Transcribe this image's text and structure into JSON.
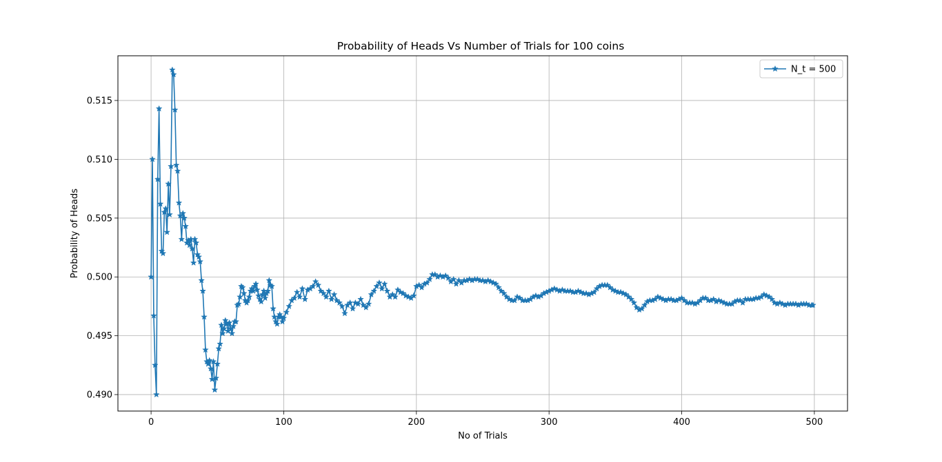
{
  "chart_data": {
    "type": "line",
    "title": "Probability of Heads Vs Number of Trials for 100 coins",
    "xlabel": "No of Trials",
    "ylabel": "Probability of Heads",
    "xlim": [
      -25,
      525
    ],
    "ylim": [
      0.4886,
      0.5188
    ],
    "xticks": [
      0,
      100,
      200,
      300,
      400,
      500
    ],
    "yticks": [
      0.49,
      0.495,
      0.5,
      0.505,
      0.51,
      0.515
    ],
    "ytick_labels": [
      "0.490",
      "0.495",
      "0.500",
      "0.505",
      "0.510",
      "0.515"
    ],
    "grid": true,
    "legend_position": "top-right",
    "marker": "star",
    "series": [
      {
        "name": "N_t = 500",
        "color": "#1f77b4",
        "points": [
          [
            0,
            0.5
          ],
          [
            1,
            0.51
          ],
          [
            2,
            0.4967
          ],
          [
            3,
            0.4925
          ],
          [
            4,
            0.49
          ],
          [
            5,
            0.5083
          ],
          [
            6,
            0.5143
          ],
          [
            7,
            0.5062
          ],
          [
            8,
            0.5022
          ],
          [
            9,
            0.502
          ],
          [
            10,
            0.5055
          ],
          [
            11,
            0.5058
          ],
          [
            12,
            0.5038
          ],
          [
            13,
            0.5079
          ],
          [
            14,
            0.5053
          ],
          [
            15,
            0.5094
          ],
          [
            16,
            0.5176
          ],
          [
            17,
            0.5172
          ],
          [
            18,
            0.5142
          ],
          [
            19,
            0.5095
          ],
          [
            20,
            0.509
          ],
          [
            21,
            0.5063
          ],
          [
            22,
            0.5052
          ],
          [
            23,
            0.5032
          ],
          [
            24,
            0.5054
          ],
          [
            25,
            0.505
          ],
          [
            26,
            0.5043
          ],
          [
            27,
            0.5029
          ],
          [
            28,
            0.5031
          ],
          [
            29,
            0.5027
          ],
          [
            30,
            0.5032
          ],
          [
            31,
            0.5024
          ],
          [
            32,
            0.5012
          ],
          [
            33,
            0.5032
          ],
          [
            34,
            0.5029
          ],
          [
            35,
            0.5019
          ],
          [
            36,
            0.5017
          ],
          [
            37,
            0.5013
          ],
          [
            38,
            0.4997
          ],
          [
            39,
            0.4988
          ],
          [
            40,
            0.4966
          ],
          [
            41,
            0.4938
          ],
          [
            42,
            0.4928
          ],
          [
            43,
            0.4926
          ],
          [
            44,
            0.4929
          ],
          [
            45,
            0.4922
          ],
          [
            46,
            0.4913
          ],
          [
            47,
            0.4928
          ],
          [
            48,
            0.4904
          ],
          [
            49,
            0.4914
          ],
          [
            50,
            0.4926
          ],
          [
            51,
            0.4939
          ],
          [
            52,
            0.4943
          ],
          [
            53,
            0.4959
          ],
          [
            54,
            0.4952
          ],
          [
            55,
            0.4956
          ],
          [
            56,
            0.4963
          ],
          [
            57,
            0.496
          ],
          [
            58,
            0.4954
          ],
          [
            59,
            0.4961
          ],
          [
            60,
            0.4956
          ],
          [
            61,
            0.4952
          ],
          [
            62,
            0.4958
          ],
          [
            63,
            0.4962
          ],
          [
            64,
            0.4962
          ],
          [
            65,
            0.4976
          ],
          [
            66,
            0.4977
          ],
          [
            67,
            0.4983
          ],
          [
            68,
            0.4992
          ],
          [
            69,
            0.4991
          ],
          [
            70,
            0.4986
          ],
          [
            71,
            0.498
          ],
          [
            72,
            0.4978
          ],
          [
            73,
            0.498
          ],
          [
            74,
            0.4983
          ],
          [
            75,
            0.4988
          ],
          [
            76,
            0.499
          ],
          [
            77,
            0.4988
          ],
          [
            78,
            0.4992
          ],
          [
            79,
            0.4994
          ],
          [
            80,
            0.4989
          ],
          [
            81,
            0.4984
          ],
          [
            82,
            0.4981
          ],
          [
            83,
            0.4979
          ],
          [
            84,
            0.4985
          ],
          [
            85,
            0.4988
          ],
          [
            86,
            0.4982
          ],
          [
            87,
            0.4986
          ],
          [
            88,
            0.4988
          ],
          [
            89,
            0.4997
          ],
          [
            90,
            0.4993
          ],
          [
            91,
            0.4992
          ],
          [
            92,
            0.4973
          ],
          [
            93,
            0.4966
          ],
          [
            94,
            0.4962
          ],
          [
            95,
            0.496
          ],
          [
            96,
            0.4966
          ],
          [
            97,
            0.4968
          ],
          [
            98,
            0.4966
          ],
          [
            99,
            0.4962
          ],
          [
            100,
            0.4965
          ],
          [
            102,
            0.497
          ],
          [
            104,
            0.4975
          ],
          [
            106,
            0.498
          ],
          [
            108,
            0.4982
          ],
          [
            110,
            0.4987
          ],
          [
            112,
            0.4983
          ],
          [
            114,
            0.499
          ],
          [
            116,
            0.4981
          ],
          [
            118,
            0.4989
          ],
          [
            120,
            0.499
          ],
          [
            122,
            0.4992
          ],
          [
            124,
            0.4996
          ],
          [
            126,
            0.4993
          ],
          [
            128,
            0.4988
          ],
          [
            130,
            0.4986
          ],
          [
            132,
            0.4983
          ],
          [
            134,
            0.4988
          ],
          [
            136,
            0.4981
          ],
          [
            138,
            0.4985
          ],
          [
            140,
            0.498
          ],
          [
            142,
            0.4978
          ],
          [
            144,
            0.4975
          ],
          [
            146,
            0.4969
          ],
          [
            148,
            0.4976
          ],
          [
            150,
            0.4978
          ],
          [
            152,
            0.4973
          ],
          [
            154,
            0.4978
          ],
          [
            156,
            0.4977
          ],
          [
            158,
            0.4981
          ],
          [
            160,
            0.4976
          ],
          [
            162,
            0.4974
          ],
          [
            164,
            0.4977
          ],
          [
            166,
            0.4985
          ],
          [
            168,
            0.4988
          ],
          [
            170,
            0.4992
          ],
          [
            172,
            0.4995
          ],
          [
            174,
            0.499
          ],
          [
            176,
            0.4994
          ],
          [
            178,
            0.4988
          ],
          [
            180,
            0.4983
          ],
          [
            182,
            0.4985
          ],
          [
            184,
            0.4983
          ],
          [
            186,
            0.4989
          ],
          [
            188,
            0.4987
          ],
          [
            190,
            0.4986
          ],
          [
            192,
            0.4984
          ],
          [
            194,
            0.4983
          ],
          [
            196,
            0.4982
          ],
          [
            198,
            0.4984
          ],
          [
            200,
            0.4992
          ],
          [
            202,
            0.4993
          ],
          [
            204,
            0.4991
          ],
          [
            206,
            0.4994
          ],
          [
            208,
            0.4995
          ],
          [
            210,
            0.4998
          ],
          [
            212,
            0.5002
          ],
          [
            214,
            0.5002
          ],
          [
            216,
            0.5
          ],
          [
            218,
            0.5001
          ],
          [
            220,
            0.5
          ],
          [
            222,
            0.5001
          ],
          [
            224,
            0.4999
          ],
          [
            226,
            0.4996
          ],
          [
            228,
            0.4998
          ],
          [
            230,
            0.4994
          ],
          [
            232,
            0.4997
          ],
          [
            234,
            0.4995
          ],
          [
            236,
            0.4997
          ],
          [
            238,
            0.4997
          ],
          [
            240,
            0.4998
          ],
          [
            242,
            0.4997
          ],
          [
            244,
            0.4998
          ],
          [
            246,
            0.4998
          ],
          [
            248,
            0.4997
          ],
          [
            250,
            0.4997
          ],
          [
            252,
            0.4996
          ],
          [
            254,
            0.4997
          ],
          [
            256,
            0.4996
          ],
          [
            258,
            0.4995
          ],
          [
            260,
            0.4994
          ],
          [
            262,
            0.4991
          ],
          [
            264,
            0.4988
          ],
          [
            266,
            0.4986
          ],
          [
            268,
            0.4983
          ],
          [
            270,
            0.4981
          ],
          [
            272,
            0.498
          ],
          [
            274,
            0.498
          ],
          [
            276,
            0.4983
          ],
          [
            278,
            0.4982
          ],
          [
            280,
            0.498
          ],
          [
            282,
            0.498
          ],
          [
            284,
            0.498
          ],
          [
            286,
            0.4981
          ],
          [
            288,
            0.4983
          ],
          [
            290,
            0.4984
          ],
          [
            292,
            0.4983
          ],
          [
            294,
            0.4984
          ],
          [
            296,
            0.4986
          ],
          [
            298,
            0.4987
          ],
          [
            300,
            0.4988
          ],
          [
            302,
            0.4989
          ],
          [
            304,
            0.499
          ],
          [
            306,
            0.4989
          ],
          [
            308,
            0.4988
          ],
          [
            310,
            0.4989
          ],
          [
            312,
            0.4988
          ],
          [
            314,
            0.4988
          ],
          [
            316,
            0.4988
          ],
          [
            318,
            0.4987
          ],
          [
            320,
            0.4987
          ],
          [
            322,
            0.4988
          ],
          [
            324,
            0.4987
          ],
          [
            326,
            0.4986
          ],
          [
            328,
            0.4986
          ],
          [
            330,
            0.4985
          ],
          [
            332,
            0.4986
          ],
          [
            334,
            0.4987
          ],
          [
            336,
            0.499
          ],
          [
            338,
            0.4992
          ],
          [
            340,
            0.4993
          ],
          [
            342,
            0.4993
          ],
          [
            344,
            0.4993
          ],
          [
            346,
            0.4991
          ],
          [
            348,
            0.4989
          ],
          [
            350,
            0.4988
          ],
          [
            352,
            0.4987
          ],
          [
            354,
            0.4987
          ],
          [
            356,
            0.4986
          ],
          [
            358,
            0.4985
          ],
          [
            360,
            0.4983
          ],
          [
            362,
            0.4981
          ],
          [
            364,
            0.4978
          ],
          [
            366,
            0.4974
          ],
          [
            368,
            0.4972
          ],
          [
            370,
            0.4973
          ],
          [
            372,
            0.4976
          ],
          [
            374,
            0.4979
          ],
          [
            376,
            0.498
          ],
          [
            378,
            0.498
          ],
          [
            380,
            0.4981
          ],
          [
            382,
            0.4983
          ],
          [
            384,
            0.4982
          ],
          [
            386,
            0.4981
          ],
          [
            388,
            0.498
          ],
          [
            390,
            0.4981
          ],
          [
            392,
            0.4981
          ],
          [
            394,
            0.498
          ],
          [
            396,
            0.498
          ],
          [
            398,
            0.4981
          ],
          [
            400,
            0.4982
          ],
          [
            402,
            0.498
          ],
          [
            404,
            0.4978
          ],
          [
            406,
            0.4978
          ],
          [
            408,
            0.4978
          ],
          [
            410,
            0.4977
          ],
          [
            412,
            0.4978
          ],
          [
            414,
            0.498
          ],
          [
            416,
            0.4982
          ],
          [
            418,
            0.4982
          ],
          [
            420,
            0.498
          ],
          [
            422,
            0.498
          ],
          [
            424,
            0.4981
          ],
          [
            426,
            0.4979
          ],
          [
            428,
            0.498
          ],
          [
            430,
            0.4979
          ],
          [
            432,
            0.4978
          ],
          [
            434,
            0.4977
          ],
          [
            436,
            0.4977
          ],
          [
            438,
            0.4977
          ],
          [
            440,
            0.4979
          ],
          [
            442,
            0.498
          ],
          [
            444,
            0.498
          ],
          [
            446,
            0.4978
          ],
          [
            448,
            0.4981
          ],
          [
            450,
            0.4981
          ],
          [
            452,
            0.4981
          ],
          [
            454,
            0.4981
          ],
          [
            456,
            0.4982
          ],
          [
            458,
            0.4982
          ],
          [
            460,
            0.4983
          ],
          [
            462,
            0.4985
          ],
          [
            464,
            0.4984
          ],
          [
            466,
            0.4983
          ],
          [
            468,
            0.4981
          ],
          [
            470,
            0.4978
          ],
          [
            472,
            0.4977
          ],
          [
            474,
            0.4978
          ],
          [
            476,
            0.4977
          ],
          [
            478,
            0.4976
          ],
          [
            480,
            0.4977
          ],
          [
            482,
            0.4977
          ],
          [
            484,
            0.4977
          ],
          [
            486,
            0.4977
          ],
          [
            488,
            0.4976
          ],
          [
            490,
            0.4977
          ],
          [
            492,
            0.4977
          ],
          [
            494,
            0.4977
          ],
          [
            496,
            0.4976
          ],
          [
            498,
            0.4976
          ],
          [
            499,
            0.4976
          ]
        ]
      }
    ]
  }
}
